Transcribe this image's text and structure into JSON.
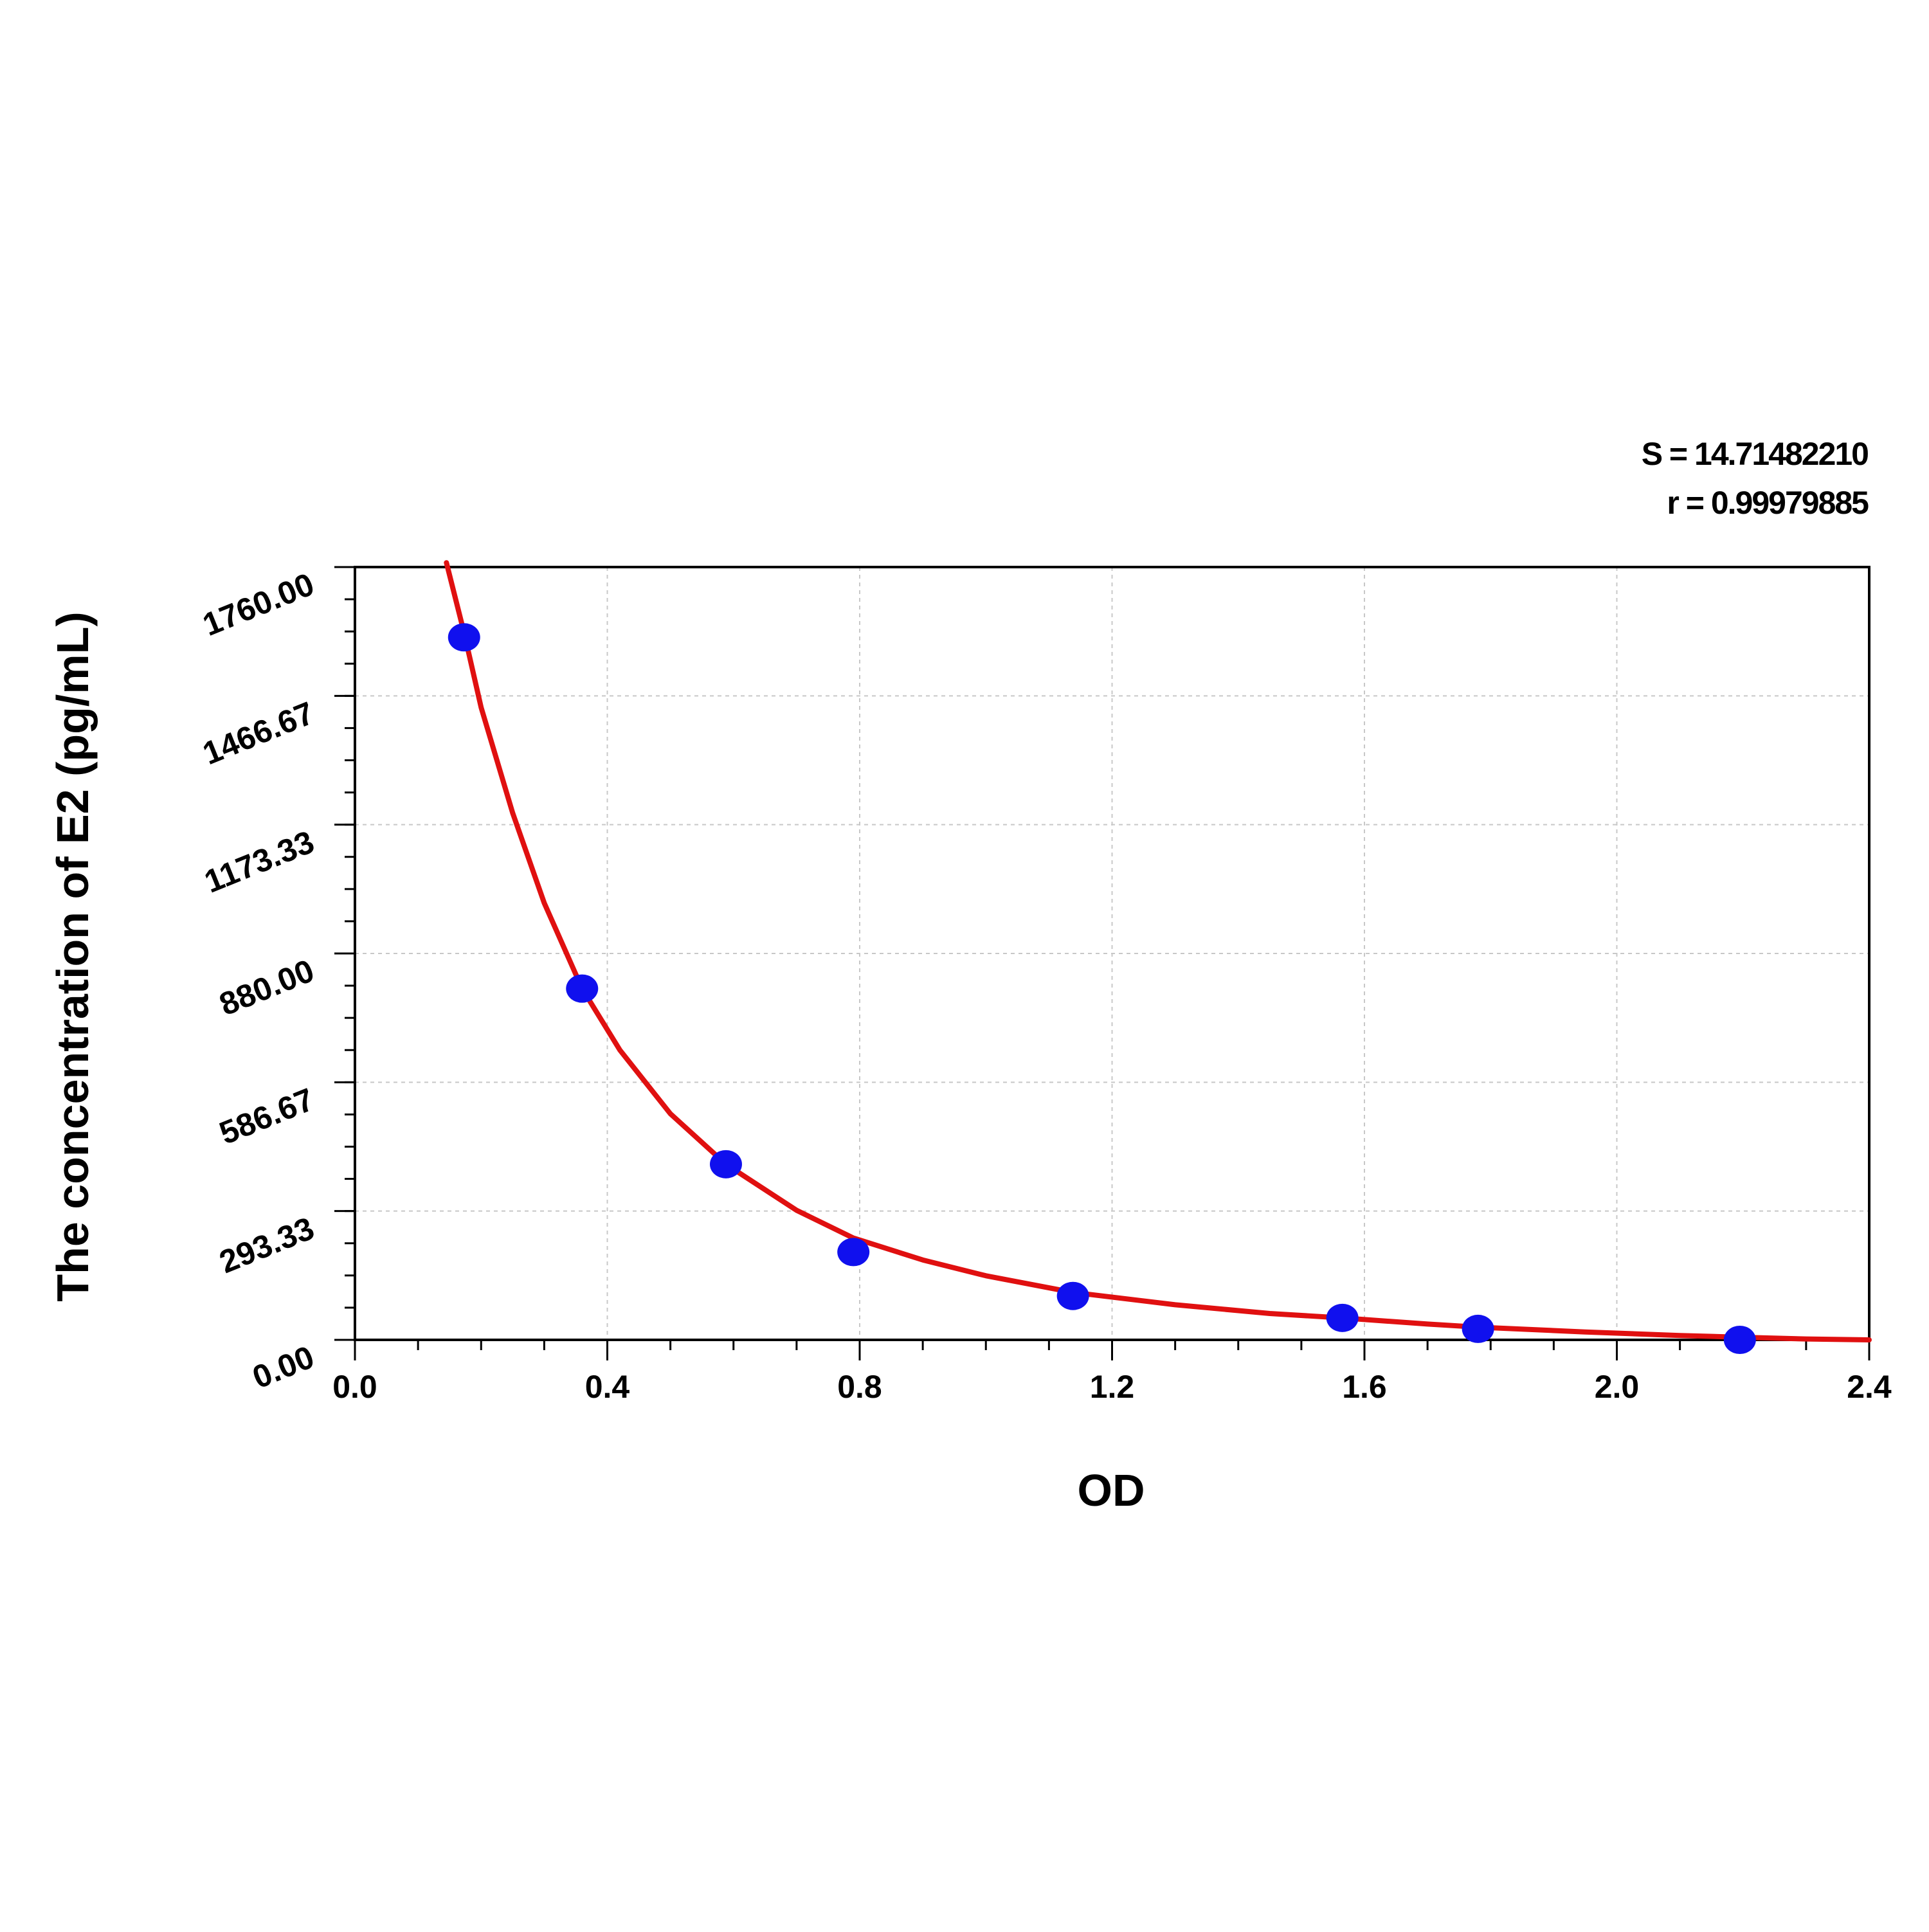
{
  "chart_data": {
    "type": "scatter",
    "xlabel": "OD",
    "ylabel": "The concentration of E2 (pg/mL)",
    "stats": [
      "S = 14.71482210",
      "r = 0.99979885"
    ],
    "xlim": [
      0,
      2.4
    ],
    "ylim": [
      0,
      1760
    ],
    "x_ticks": [
      "0.0",
      "0.4",
      "0.8",
      "1.2",
      "1.6",
      "2.0",
      "2.4"
    ],
    "x_tick_values": [
      0,
      0.4,
      0.8,
      1.2,
      1.6,
      2.0,
      2.4
    ],
    "y_ticks": [
      "0.00",
      "293.33",
      "586.67",
      "880.00",
      "1173.33",
      "1466.67",
      "1760.00"
    ],
    "y_tick_values": [
      0,
      293.33,
      586.67,
      880,
      1173.33,
      1466.67,
      1760
    ],
    "grid": true,
    "series": [
      {
        "kind": "points",
        "color": "#1010ee",
        "x": [
          0.173,
          0.36,
          0.588,
          0.79,
          1.138,
          1.565,
          1.78,
          2.195
        ],
        "y": [
          1600,
          800,
          400,
          200,
          100,
          50,
          25,
          0
        ]
      },
      {
        "kind": "fit-curve",
        "color": "#e01010",
        "x": [
          0.145,
          0.173,
          0.2,
          0.25,
          0.3,
          0.36,
          0.42,
          0.5,
          0.588,
          0.7,
          0.79,
          0.9,
          1.0,
          1.138,
          1.3,
          1.45,
          1.565,
          1.7,
          1.78,
          1.95,
          2.1,
          2.195,
          2.3,
          2.4
        ],
        "y": [
          1770,
          1610,
          1440,
          1200,
          995,
          800,
          660,
          515,
          400,
          295,
          232,
          182,
          146,
          108,
          80,
          60,
          50,
          36,
          29,
          18,
          10,
          6,
          2,
          0
        ]
      }
    ]
  }
}
